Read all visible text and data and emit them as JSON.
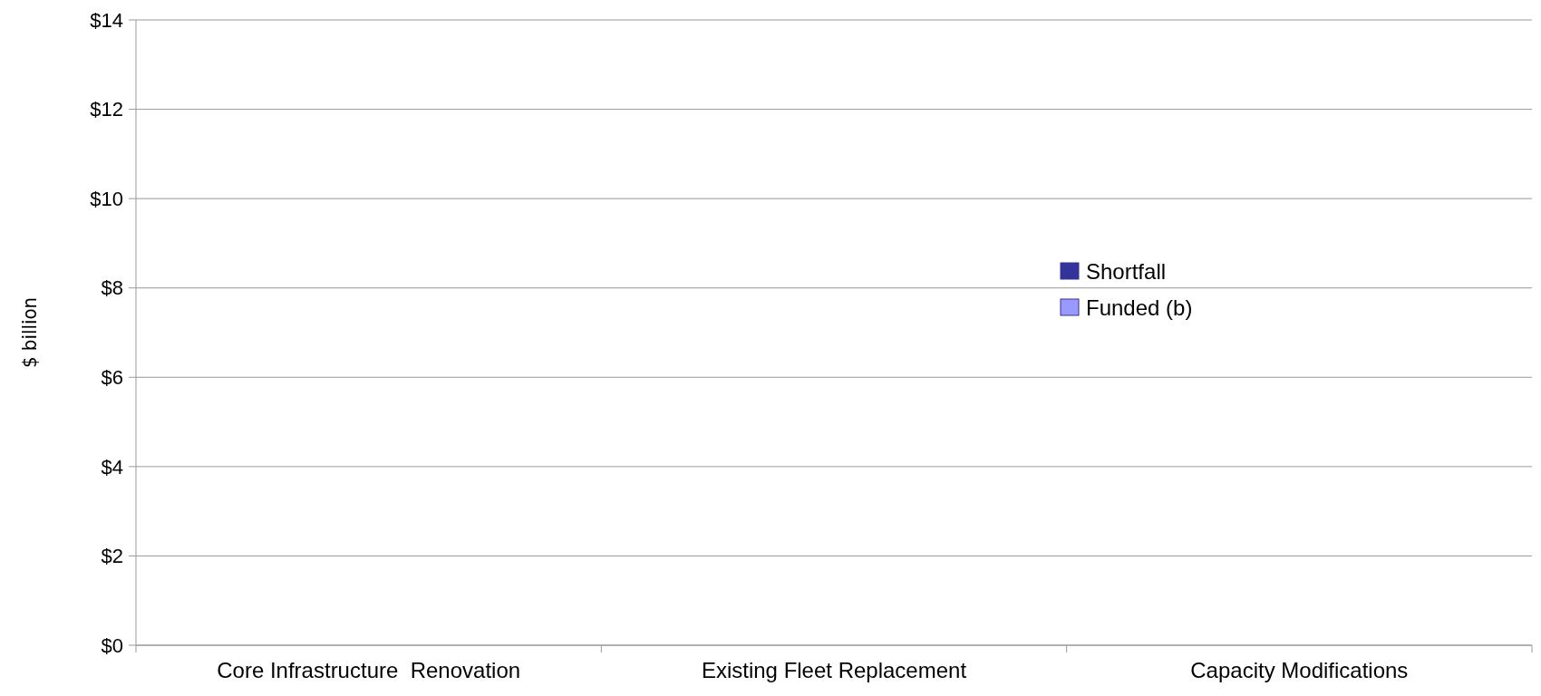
{
  "chart_data": {
    "type": "bar",
    "stacked": true,
    "ylabel": "$ billion",
    "categories": [
      "Core Infrastructure  Renovation",
      "Existing Fleet Replacement",
      "Capacity Modifications"
    ],
    "series": [
      {
        "name": "Funded (b)",
        "color": "#9999ff",
        "values": [
          null,
          null,
          null
        ]
      },
      {
        "name": "Shortfall",
        "color": "#333399",
        "values": [
          null,
          null,
          null
        ]
      }
    ],
    "ylim": [
      0,
      14
    ],
    "yticks": [
      {
        "value": 0,
        "label": "$0"
      },
      {
        "value": 2,
        "label": "$2"
      },
      {
        "value": 4,
        "label": "$4"
      },
      {
        "value": 6,
        "label": "$6"
      },
      {
        "value": 8,
        "label": "$8"
      },
      {
        "value": 10,
        "label": "$10"
      },
      {
        "value": 12,
        "label": "$12"
      },
      {
        "value": 14,
        "label": "$14"
      }
    ],
    "grid": "y",
    "legend": "right"
  }
}
